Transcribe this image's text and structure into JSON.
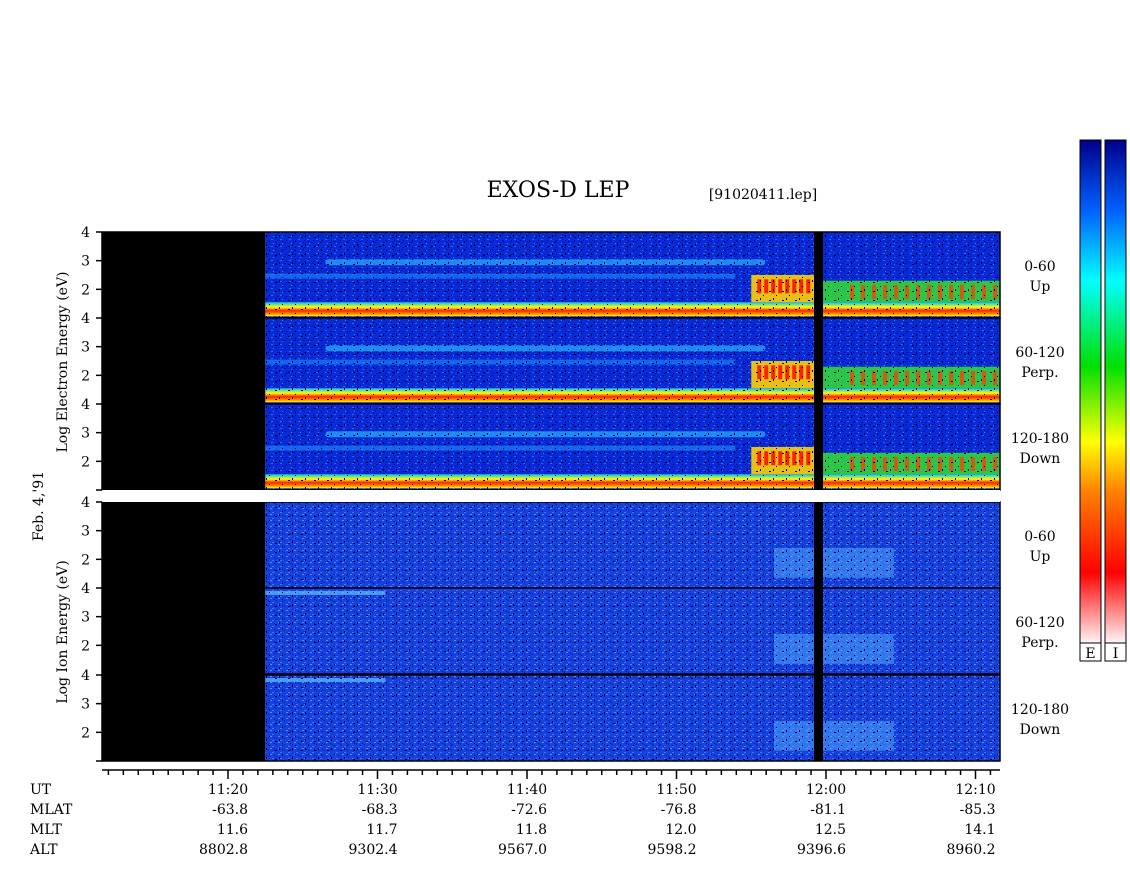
{
  "title": "EXOS-D LEP",
  "file_tag": "[91020411.lep]",
  "date_label": "Feb. 4,'91",
  "electron_ylabel": "Log  Electron  Energy (eV)",
  "ion_ylabel": "Log  Ion  Energy (eV)",
  "colorbar_labels": [
    "E",
    "I"
  ],
  "colors": {
    "background": "#ffffff",
    "no_data": "#000000",
    "scale_low": "#fff5f5",
    "scale_high": "#00008b"
  },
  "chart_data": {
    "type": "heatmap",
    "x_axis": {
      "label": "UT",
      "ticks": [
        "11:20",
        "11:30",
        "11:40",
        "11:50",
        "12:00",
        "12:10"
      ]
    },
    "orbit_rows": [
      {
        "label": "MLAT",
        "values": [
          "-63.8",
          "-68.3",
          "-72.6",
          "-76.8",
          "-81.1",
          "-85.3"
        ]
      },
      {
        "label": "MLT",
        "values": [
          "11.6",
          "11.7",
          "11.8",
          "12.0",
          "12.5",
          "14.1"
        ]
      },
      {
        "label": "ALT",
        "values": [
          "8802.8",
          "9302.4",
          "9567.0",
          "9598.2",
          "9396.6",
          "8960.2"
        ]
      }
    ],
    "y_ticks": [
      "4",
      "3",
      "2"
    ],
    "y_ticks_bottom": [
      "4",
      "3",
      "2",
      "1"
    ],
    "panels": [
      {
        "species": "Electron",
        "pitch": "0-60",
        "direction": "Up"
      },
      {
        "species": "Electron",
        "pitch": "60-120",
        "direction": "Perp."
      },
      {
        "species": "Electron",
        "pitch": "120-180",
        "direction": "Down"
      },
      {
        "species": "Ion",
        "pitch": "0-60",
        "direction": "Up"
      },
      {
        "species": "Ion",
        "pitch": "60-120",
        "direction": "Perp."
      },
      {
        "species": "Ion",
        "pitch": "120-180",
        "direction": "Down"
      }
    ],
    "data_start_ut": "11:22.5",
    "data_gap_ut": "11:59.2",
    "y_range": [
      1,
      4
    ],
    "colorbar_gradient": [
      "#fff5f5",
      "#ff0000",
      "#ff8000",
      "#ffff00",
      "#00e000",
      "#00ffff",
      "#0060ff",
      "#00008b"
    ]
  }
}
